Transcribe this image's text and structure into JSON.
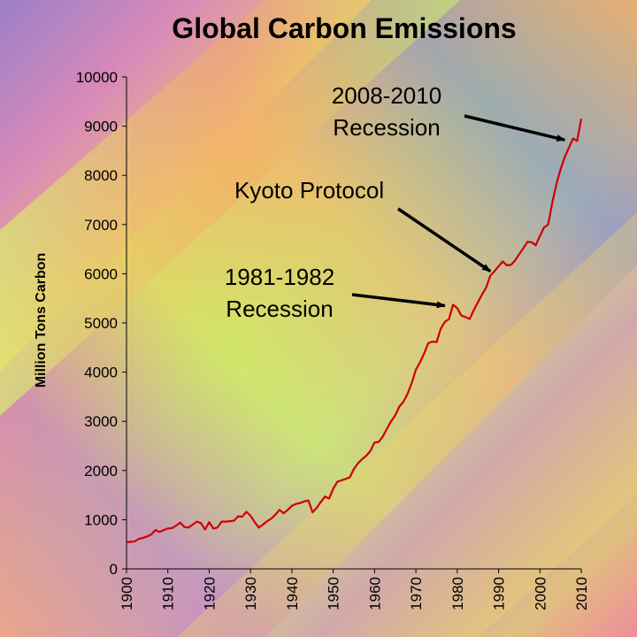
{
  "chart_data": {
    "type": "line",
    "title": "Global Carbon Emissions",
    "xlabel": "",
    "ylabel": "Million Tons Carbon",
    "xlim": [
      1900,
      2010
    ],
    "ylim": [
      0,
      10000
    ],
    "grid": false,
    "x_ticks": [
      "1900",
      "1910",
      "1920",
      "1930",
      "1940",
      "1950",
      "1960",
      "1970",
      "1980",
      "1990",
      "2000",
      "2010"
    ],
    "y_ticks": [
      "0",
      "1000",
      "2000",
      "3000",
      "4000",
      "5000",
      "6000",
      "7000",
      "8000",
      "9000",
      "10000"
    ],
    "series": [
      {
        "name": "",
        "color": "#cc0000",
        "x": [
          1900,
          1901,
          1902,
          1903,
          1904,
          1905,
          1906,
          1907,
          1908,
          1909,
          1910,
          1911,
          1912,
          1913,
          1914,
          1915,
          1916,
          1917,
          1918,
          1919,
          1920,
          1921,
          1922,
          1923,
          1924,
          1925,
          1926,
          1927,
          1928,
          1929,
          1930,
          1931,
          1932,
          1933,
          1934,
          1935,
          1936,
          1937,
          1938,
          1939,
          1940,
          1941,
          1942,
          1943,
          1944,
          1945,
          1946,
          1947,
          1948,
          1949,
          1950,
          1951,
          1952,
          1953,
          1954,
          1955,
          1956,
          1957,
          1958,
          1959,
          1960,
          1961,
          1962,
          1963,
          1964,
          1965,
          1966,
          1967,
          1968,
          1969,
          1970,
          1971,
          1972,
          1973,
          1974,
          1975,
          1976,
          1977,
          1978,
          1979,
          1980,
          1981,
          1982,
          1983,
          1984,
          1985,
          1986,
          1987,
          1988,
          1989,
          1990,
          1991,
          1992,
          1993,
          1994,
          1995,
          1996,
          1997,
          1998,
          1999,
          2000,
          2001,
          2002,
          2003,
          2004,
          2005,
          2006,
          2007,
          2008,
          2009,
          2010
        ],
        "y": [
          540,
          550,
          560,
          610,
          630,
          660,
          700,
          790,
          750,
          790,
          820,
          830,
          880,
          940,
          850,
          840,
          900,
          960,
          930,
          800,
          950,
          820,
          840,
          960,
          960,
          970,
          980,
          1070,
          1060,
          1160,
          1080,
          950,
          840,
          900,
          970,
          1020,
          1100,
          1200,
          1130,
          1200,
          1280,
          1320,
          1340,
          1370,
          1390,
          1150,
          1240,
          1360,
          1470,
          1430,
          1630,
          1770,
          1800,
          1830,
          1860,
          2030,
          2150,
          2230,
          2300,
          2400,
          2570,
          2580,
          2690,
          2850,
          3000,
          3120,
          3300,
          3400,
          3560,
          3780,
          4050,
          4200,
          4380,
          4590,
          4620,
          4610,
          4880,
          5020,
          5080,
          5370,
          5300,
          5150,
          5120,
          5080,
          5260,
          5420,
          5580,
          5720,
          5960,
          6050,
          6150,
          6250,
          6170,
          6180,
          6270,
          6400,
          6520,
          6650,
          6640,
          6580,
          6770,
          6940,
          7000,
          7450,
          7830,
          8120,
          8370,
          8560,
          8750,
          8700,
          9150
        ]
      }
    ],
    "annotations": [
      {
        "lines": [
          "2008-2010",
          "Recession"
        ],
        "target_x": 2006,
        "target_y": 8720
      },
      {
        "lines": [
          "Kyoto Protocol"
        ],
        "target_x": 1988,
        "target_y": 6050
      },
      {
        "lines": [
          "1981-1982",
          "Recession"
        ],
        "target_x": 1977,
        "target_y": 5350
      }
    ]
  }
}
